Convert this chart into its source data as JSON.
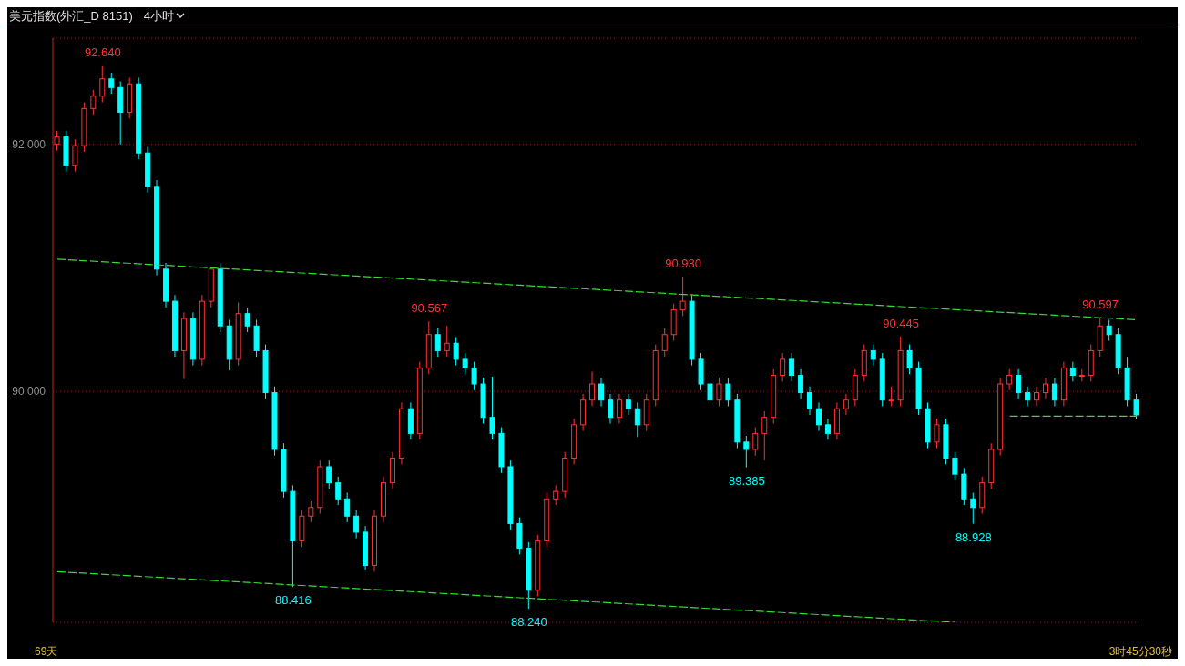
{
  "chart_data": {
    "type": "candlestick",
    "title": "美元指数(外汇_D 8151)",
    "subtitle": "4小时",
    "categories": [
      null,
      null,
      null,
      null,
      null,
      null,
      null,
      null,
      null,
      null,
      null,
      null,
      null,
      null,
      null,
      null,
      null,
      null,
      null,
      null,
      null,
      null,
      null,
      null,
      null,
      null,
      null,
      null,
      null,
      null,
      null,
      null,
      null,
      null,
      null,
      null,
      null,
      null,
      null,
      null,
      null,
      null,
      null,
      null,
      null,
      null,
      null,
      null,
      null,
      null,
      null,
      null,
      null,
      null,
      null,
      null,
      null,
      null,
      null,
      null,
      null,
      null,
      null,
      null,
      null,
      null,
      null,
      null,
      null,
      null,
      null,
      null,
      null,
      null,
      null,
      null,
      null,
      null,
      null,
      null,
      null,
      null,
      null,
      null,
      null,
      null,
      null,
      null,
      null,
      null,
      null,
      null,
      null,
      null,
      null,
      null,
      null,
      null,
      null,
      null,
      null,
      null,
      null,
      null,
      null,
      null,
      null,
      null,
      null,
      null,
      null,
      null,
      null,
      null,
      null,
      null,
      null,
      null,
      null,
      null
    ],
    "ohlc": [
      [
        92.0,
        92.11,
        91.95,
        92.06
      ],
      [
        92.06,
        92.11,
        91.78,
        91.83
      ],
      [
        91.83,
        92.04,
        91.78,
        91.99
      ],
      [
        91.99,
        92.34,
        91.94,
        92.29
      ],
      [
        92.29,
        92.44,
        92.24,
        92.39
      ],
      [
        92.39,
        92.64,
        92.34,
        92.53
      ],
      [
        92.53,
        92.58,
        92.41,
        92.46
      ],
      [
        92.46,
        92.51,
        92.0,
        92.26
      ],
      [
        92.26,
        92.54,
        92.21,
        92.49
      ],
      [
        92.49,
        92.54,
        91.88,
        91.93
      ],
      [
        91.93,
        91.98,
        91.61,
        91.66
      ],
      [
        91.66,
        91.71,
        90.94,
        90.99
      ],
      [
        90.99,
        91.04,
        90.68,
        90.73
      ],
      [
        90.73,
        90.78,
        90.28,
        90.33
      ],
      [
        90.33,
        90.64,
        90.1,
        90.59
      ],
      [
        90.59,
        90.64,
        90.21,
        90.26
      ],
      [
        90.26,
        90.78,
        90.21,
        90.73
      ],
      [
        90.73,
        91.01,
        90.68,
        90.99
      ],
      [
        90.99,
        91.04,
        90.48,
        90.53
      ],
      [
        90.53,
        90.58,
        90.17,
        90.26
      ],
      [
        90.26,
        90.72,
        90.21,
        90.63
      ],
      [
        90.63,
        90.68,
        90.48,
        90.53
      ],
      [
        90.53,
        90.58,
        90.28,
        90.33
      ],
      [
        90.33,
        90.38,
        89.94,
        89.99
      ],
      [
        89.99,
        90.04,
        89.48,
        89.53
      ],
      [
        89.53,
        89.58,
        89.14,
        89.19
      ],
      [
        89.19,
        89.24,
        88.416,
        88.79
      ],
      [
        88.79,
        89.04,
        88.74,
        88.99
      ],
      [
        88.99,
        89.11,
        88.94,
        89.06
      ],
      [
        89.06,
        89.44,
        89.01,
        89.39
      ],
      [
        89.39,
        89.44,
        89.21,
        89.26
      ],
      [
        89.26,
        89.31,
        89.08,
        89.13
      ],
      [
        89.13,
        89.18,
        88.94,
        88.99
      ],
      [
        88.99,
        89.04,
        88.81,
        88.86
      ],
      [
        88.86,
        88.91,
        88.55,
        88.59
      ],
      [
        88.59,
        89.04,
        88.54,
        88.99
      ],
      [
        88.99,
        89.31,
        88.94,
        89.26
      ],
      [
        89.26,
        89.51,
        89.21,
        89.46
      ],
      [
        89.46,
        89.91,
        89.41,
        89.86
      ],
      [
        89.86,
        89.91,
        89.61,
        89.66
      ],
      [
        89.66,
        90.24,
        89.61,
        90.19
      ],
      [
        90.19,
        90.567,
        90.14,
        90.46
      ],
      [
        90.46,
        90.51,
        90.28,
        90.33
      ],
      [
        90.33,
        90.53,
        90.28,
        90.39
      ],
      [
        90.39,
        90.44,
        90.21,
        90.26
      ],
      [
        90.26,
        90.31,
        90.14,
        90.19
      ],
      [
        90.19,
        90.24,
        90.01,
        90.06
      ],
      [
        90.06,
        90.11,
        89.74,
        89.79
      ],
      [
        89.79,
        90.12,
        89.61,
        89.66
      ],
      [
        89.66,
        89.71,
        89.34,
        89.39
      ],
      [
        89.39,
        89.44,
        88.88,
        88.93
      ],
      [
        88.93,
        88.98,
        88.68,
        88.73
      ],
      [
        88.73,
        88.78,
        88.24,
        88.39
      ],
      [
        88.39,
        88.84,
        88.34,
        88.79
      ],
      [
        88.79,
        89.18,
        88.74,
        89.13
      ],
      [
        89.13,
        89.24,
        89.08,
        89.19
      ],
      [
        89.19,
        89.51,
        89.14,
        89.46
      ],
      [
        89.46,
        89.78,
        89.41,
        89.73
      ],
      [
        89.73,
        89.98,
        89.68,
        89.93
      ],
      [
        89.93,
        90.16,
        89.88,
        90.06
      ],
      [
        90.06,
        90.11,
        89.88,
        89.93
      ],
      [
        89.93,
        89.98,
        89.74,
        89.79
      ],
      [
        89.79,
        89.98,
        89.74,
        89.93
      ],
      [
        89.93,
        89.98,
        89.81,
        89.86
      ],
      [
        89.86,
        89.91,
        89.63,
        89.73
      ],
      [
        89.73,
        89.98,
        89.68,
        89.93
      ],
      [
        89.93,
        90.38,
        89.88,
        90.33
      ],
      [
        90.33,
        90.51,
        90.28,
        90.46
      ],
      [
        90.46,
        90.71,
        90.41,
        90.66
      ],
      [
        90.66,
        90.93,
        90.61,
        90.73
      ],
      [
        90.73,
        90.78,
        90.21,
        90.26
      ],
      [
        90.26,
        90.31,
        90.01,
        90.06
      ],
      [
        90.06,
        90.11,
        89.88,
        89.93
      ],
      [
        89.93,
        90.11,
        89.88,
        90.06
      ],
      [
        90.06,
        90.11,
        89.88,
        89.93
      ],
      [
        89.93,
        89.98,
        89.54,
        89.59
      ],
      [
        89.59,
        89.64,
        89.385,
        89.53
      ],
      [
        89.53,
        89.71,
        89.48,
        89.66
      ],
      [
        89.66,
        89.84,
        89.44,
        89.79
      ],
      [
        89.79,
        90.18,
        89.74,
        90.13
      ],
      [
        90.13,
        90.31,
        90.08,
        90.26
      ],
      [
        90.26,
        90.31,
        90.08,
        90.13
      ],
      [
        90.13,
        90.18,
        89.94,
        89.99
      ],
      [
        89.99,
        90.04,
        89.81,
        89.86
      ],
      [
        89.86,
        89.91,
        89.68,
        89.73
      ],
      [
        89.73,
        89.78,
        89.61,
        89.66
      ],
      [
        89.66,
        89.91,
        89.61,
        89.86
      ],
      [
        89.86,
        89.98,
        89.81,
        89.93
      ],
      [
        89.93,
        90.18,
        89.88,
        90.13
      ],
      [
        90.13,
        90.38,
        90.08,
        90.33
      ],
      [
        90.33,
        90.38,
        90.21,
        90.26
      ],
      [
        90.26,
        90.31,
        89.88,
        89.93
      ],
      [
        89.93,
        90.04,
        89.88,
        89.93
      ],
      [
        89.93,
        90.445,
        89.88,
        90.33
      ],
      [
        90.33,
        90.38,
        90.14,
        90.19
      ],
      [
        90.19,
        90.24,
        89.81,
        89.86
      ],
      [
        89.86,
        89.91,
        89.54,
        89.59
      ],
      [
        89.59,
        89.78,
        89.54,
        89.73
      ],
      [
        89.73,
        89.78,
        89.41,
        89.46
      ],
      [
        89.46,
        89.51,
        89.28,
        89.33
      ],
      [
        89.33,
        89.38,
        89.08,
        89.13
      ],
      [
        89.13,
        89.18,
        88.928,
        89.06
      ],
      [
        89.06,
        89.31,
        89.01,
        89.26
      ],
      [
        89.26,
        89.58,
        89.21,
        89.53
      ],
      [
        89.53,
        90.11,
        89.48,
        90.06
      ],
      [
        90.06,
        90.18,
        90.01,
        90.13
      ],
      [
        90.13,
        90.18,
        89.94,
        89.99
      ],
      [
        89.99,
        90.04,
        89.88,
        89.93
      ],
      [
        89.93,
        90.04,
        89.88,
        89.99
      ],
      [
        89.99,
        90.11,
        89.94,
        90.06
      ],
      [
        90.06,
        90.11,
        89.88,
        89.93
      ],
      [
        89.93,
        90.24,
        89.88,
        90.19
      ],
      [
        90.19,
        90.24,
        90.08,
        90.13
      ],
      [
        90.13,
        90.18,
        90.08,
        90.13
      ],
      [
        90.13,
        90.38,
        90.08,
        90.33
      ],
      [
        90.33,
        90.597,
        90.28,
        90.53
      ],
      [
        90.53,
        90.58,
        90.41,
        90.46
      ],
      [
        90.46,
        90.51,
        90.14,
        90.19
      ],
      [
        90.19,
        90.28,
        89.88,
        89.93
      ],
      [
        89.93,
        89.98,
        89.78,
        89.81
      ]
    ],
    "colors": [
      "#ff3232",
      "#00ffff",
      "#ff3232",
      "#ff3232",
      "#ff3232",
      "#ff3232",
      "#00ffff",
      "#00ffff",
      "#ff3232",
      "#00ffff",
      "#00ffff",
      "#00ffff",
      "#00ffff",
      "#00ffff",
      "#ff3232",
      "#00ffff",
      "#ff3232",
      "#ff3232",
      "#00ffff",
      "#00ffff",
      "#ff3232",
      "#00ffff",
      "#00ffff",
      "#00ffff",
      "#00ffff",
      "#00ffff",
      "#00ffff",
      "#ff3232",
      "#ff3232",
      "#ff3232",
      "#00ffff",
      "#00ffff",
      "#00ffff",
      "#00ffff",
      "#00ffff",
      "#ff3232",
      "#ff3232",
      "#ff3232",
      "#ff3232",
      "#00ffff",
      "#ff3232",
      "#ff3232",
      "#00ffff",
      "#ff3232",
      "#00ffff",
      "#00ffff",
      "#00ffff",
      "#00ffff",
      "#00ffff",
      "#00ffff",
      "#00ffff",
      "#00ffff",
      "#00ffff",
      "#ff3232",
      "#ff3232",
      "#ff3232",
      "#ff3232",
      "#ff3232",
      "#ff3232",
      "#ff3232",
      "#00ffff",
      "#00ffff",
      "#ff3232",
      "#00ffff",
      "#00ffff",
      "#ff3232",
      "#ff3232",
      "#ff3232",
      "#ff3232",
      "#ff3232",
      "#00ffff",
      "#00ffff",
      "#00ffff",
      "#ff3232",
      "#00ffff",
      "#00ffff",
      "#00ffff",
      "#ff3232",
      "#ff3232",
      "#ff3232",
      "#ff3232",
      "#00ffff",
      "#00ffff",
      "#00ffff",
      "#00ffff",
      "#00ffff",
      "#ff3232",
      "#ff3232",
      "#ff3232",
      "#ff3232",
      "#00ffff",
      "#00ffff",
      "#ff3232",
      "#ff3232",
      "#00ffff",
      "#00ffff",
      "#00ffff",
      "#ff3232",
      "#00ffff",
      "#00ffff",
      "#00ffff",
      "#00ffff",
      "#ff3232",
      "#ff3232",
      "#ff3232",
      "#ff3232",
      "#00ffff",
      "#00ffff",
      "#ff3232",
      "#ff3232",
      "#00ffff",
      "#ff3232",
      "#00ffff",
      "#ff3232",
      "#ff3232",
      "#ff3232",
      "#00ffff",
      "#00ffff",
      "#00ffff",
      "#00ffff"
    ],
    "series": [
      {
        "type": "line",
        "color": "#33dd33",
        "line_style": "dashed",
        "values": [
          91.07,
          null,
          null,
          null,
          null,
          null,
          null,
          null,
          null,
          null,
          null,
          null,
          null,
          null,
          null,
          null,
          null,
          null,
          null,
          null,
          null,
          null,
          null,
          null,
          null,
          null,
          null,
          null,
          null,
          null,
          null,
          null,
          null,
          null,
          null,
          null,
          null,
          null,
          null,
          null,
          null,
          null,
          null,
          null,
          null,
          null,
          null,
          null,
          null,
          null,
          null,
          null,
          null,
          null,
          null,
          null,
          null,
          null,
          null,
          null,
          null,
          null,
          null,
          null,
          null,
          null,
          null,
          null,
          null,
          null,
          null,
          null,
          null,
          null,
          null,
          null,
          null,
          null,
          null,
          null,
          null,
          null,
          null,
          null,
          null,
          null,
          null,
          null,
          null,
          null,
          null,
          null,
          null,
          null,
          null,
          null,
          null,
          null,
          null,
          null,
          null,
          null,
          null,
          null,
          null,
          null,
          null,
          null,
          null,
          null,
          null,
          null,
          null,
          null,
          null,
          null,
          null,
          null,
          null,
          90.58
        ]
      },
      {
        "type": "line",
        "color": "#33dd33",
        "line_style": "dashed",
        "values": [
          88.54,
          null,
          null,
          null,
          null,
          null,
          null,
          null,
          null,
          null,
          null,
          null,
          null,
          null,
          null,
          null,
          null,
          null,
          null,
          null,
          null,
          null,
          null,
          null,
          null,
          null,
          null,
          null,
          null,
          null,
          null,
          null,
          null,
          null,
          null,
          null,
          null,
          null,
          null,
          null,
          null,
          null,
          null,
          null,
          null,
          null,
          null,
          null,
          null,
          null,
          null,
          null,
          null,
          null,
          null,
          null,
          null,
          null,
          null,
          null,
          null,
          null,
          null,
          null,
          null,
          null,
          null,
          null,
          null,
          null,
          null,
          null,
          null,
          null,
          null,
          null,
          null,
          null,
          null,
          null,
          null,
          null,
          null,
          null,
          null,
          null,
          null,
          null,
          null,
          null,
          null,
          null,
          null,
          null,
          null,
          null,
          null,
          null,
          null,
          88.13,
          null,
          null,
          null,
          null,
          null,
          null,
          null,
          null,
          null,
          null,
          null,
          null,
          null,
          null,
          null,
          null,
          null,
          null,
          null,
          null
        ]
      },
      {
        "type": "line",
        "color": "#33dd33",
        "line_style": "dashed",
        "values": [
          null,
          null,
          null,
          null,
          null,
          null,
          null,
          null,
          null,
          null,
          null,
          null,
          null,
          null,
          null,
          null,
          null,
          null,
          null,
          null,
          null,
          null,
          null,
          null,
          null,
          null,
          null,
          null,
          null,
          null,
          null,
          null,
          null,
          null,
          null,
          null,
          null,
          null,
          null,
          null,
          null,
          null,
          null,
          null,
          null,
          null,
          null,
          null,
          null,
          null,
          null,
          null,
          null,
          null,
          null,
          null,
          null,
          null,
          null,
          null,
          null,
          null,
          null,
          null,
          null,
          null,
          null,
          null,
          null,
          null,
          null,
          null,
          null,
          null,
          null,
          null,
          null,
          null,
          null,
          null,
          null,
          null,
          null,
          null,
          null,
          null,
          null,
          null,
          null,
          null,
          null,
          null,
          null,
          null,
          null,
          null,
          null,
          null,
          null,
          null,
          null,
          null,
          null,
          null,
          null,
          89.8,
          null,
          null,
          null,
          null,
          null,
          null,
          null,
          null,
          null,
          null,
          null,
          null,
          null,
          89.8
        ]
      }
    ],
    "ylim": [
      88.13,
      92.86
    ],
    "yticks": [
      {
        "value": 90,
        "label": "90.000"
      },
      {
        "value": 92,
        "label": "92.000"
      }
    ],
    "grid": "y",
    "tick_labels": "y",
    "annotations": [
      {
        "text": "92.640",
        "y": 92.64
      },
      {
        "text": "88.416",
        "y": 88.416
      },
      {
        "text": "90.567",
        "y": 90.567
      },
      {
        "text": "88.240",
        "y": 88.24
      },
      {
        "text": "90.930",
        "y": 90.93
      },
      {
        "text": "89.385",
        "y": 89.385
      },
      {
        "text": "90.445",
        "y": 90.445
      },
      {
        "text": "88.928",
        "y": 88.928
      },
      {
        "text": "90.597",
        "y": 90.597
      },
      "69天",
      "3时45分30秒"
    ]
  }
}
